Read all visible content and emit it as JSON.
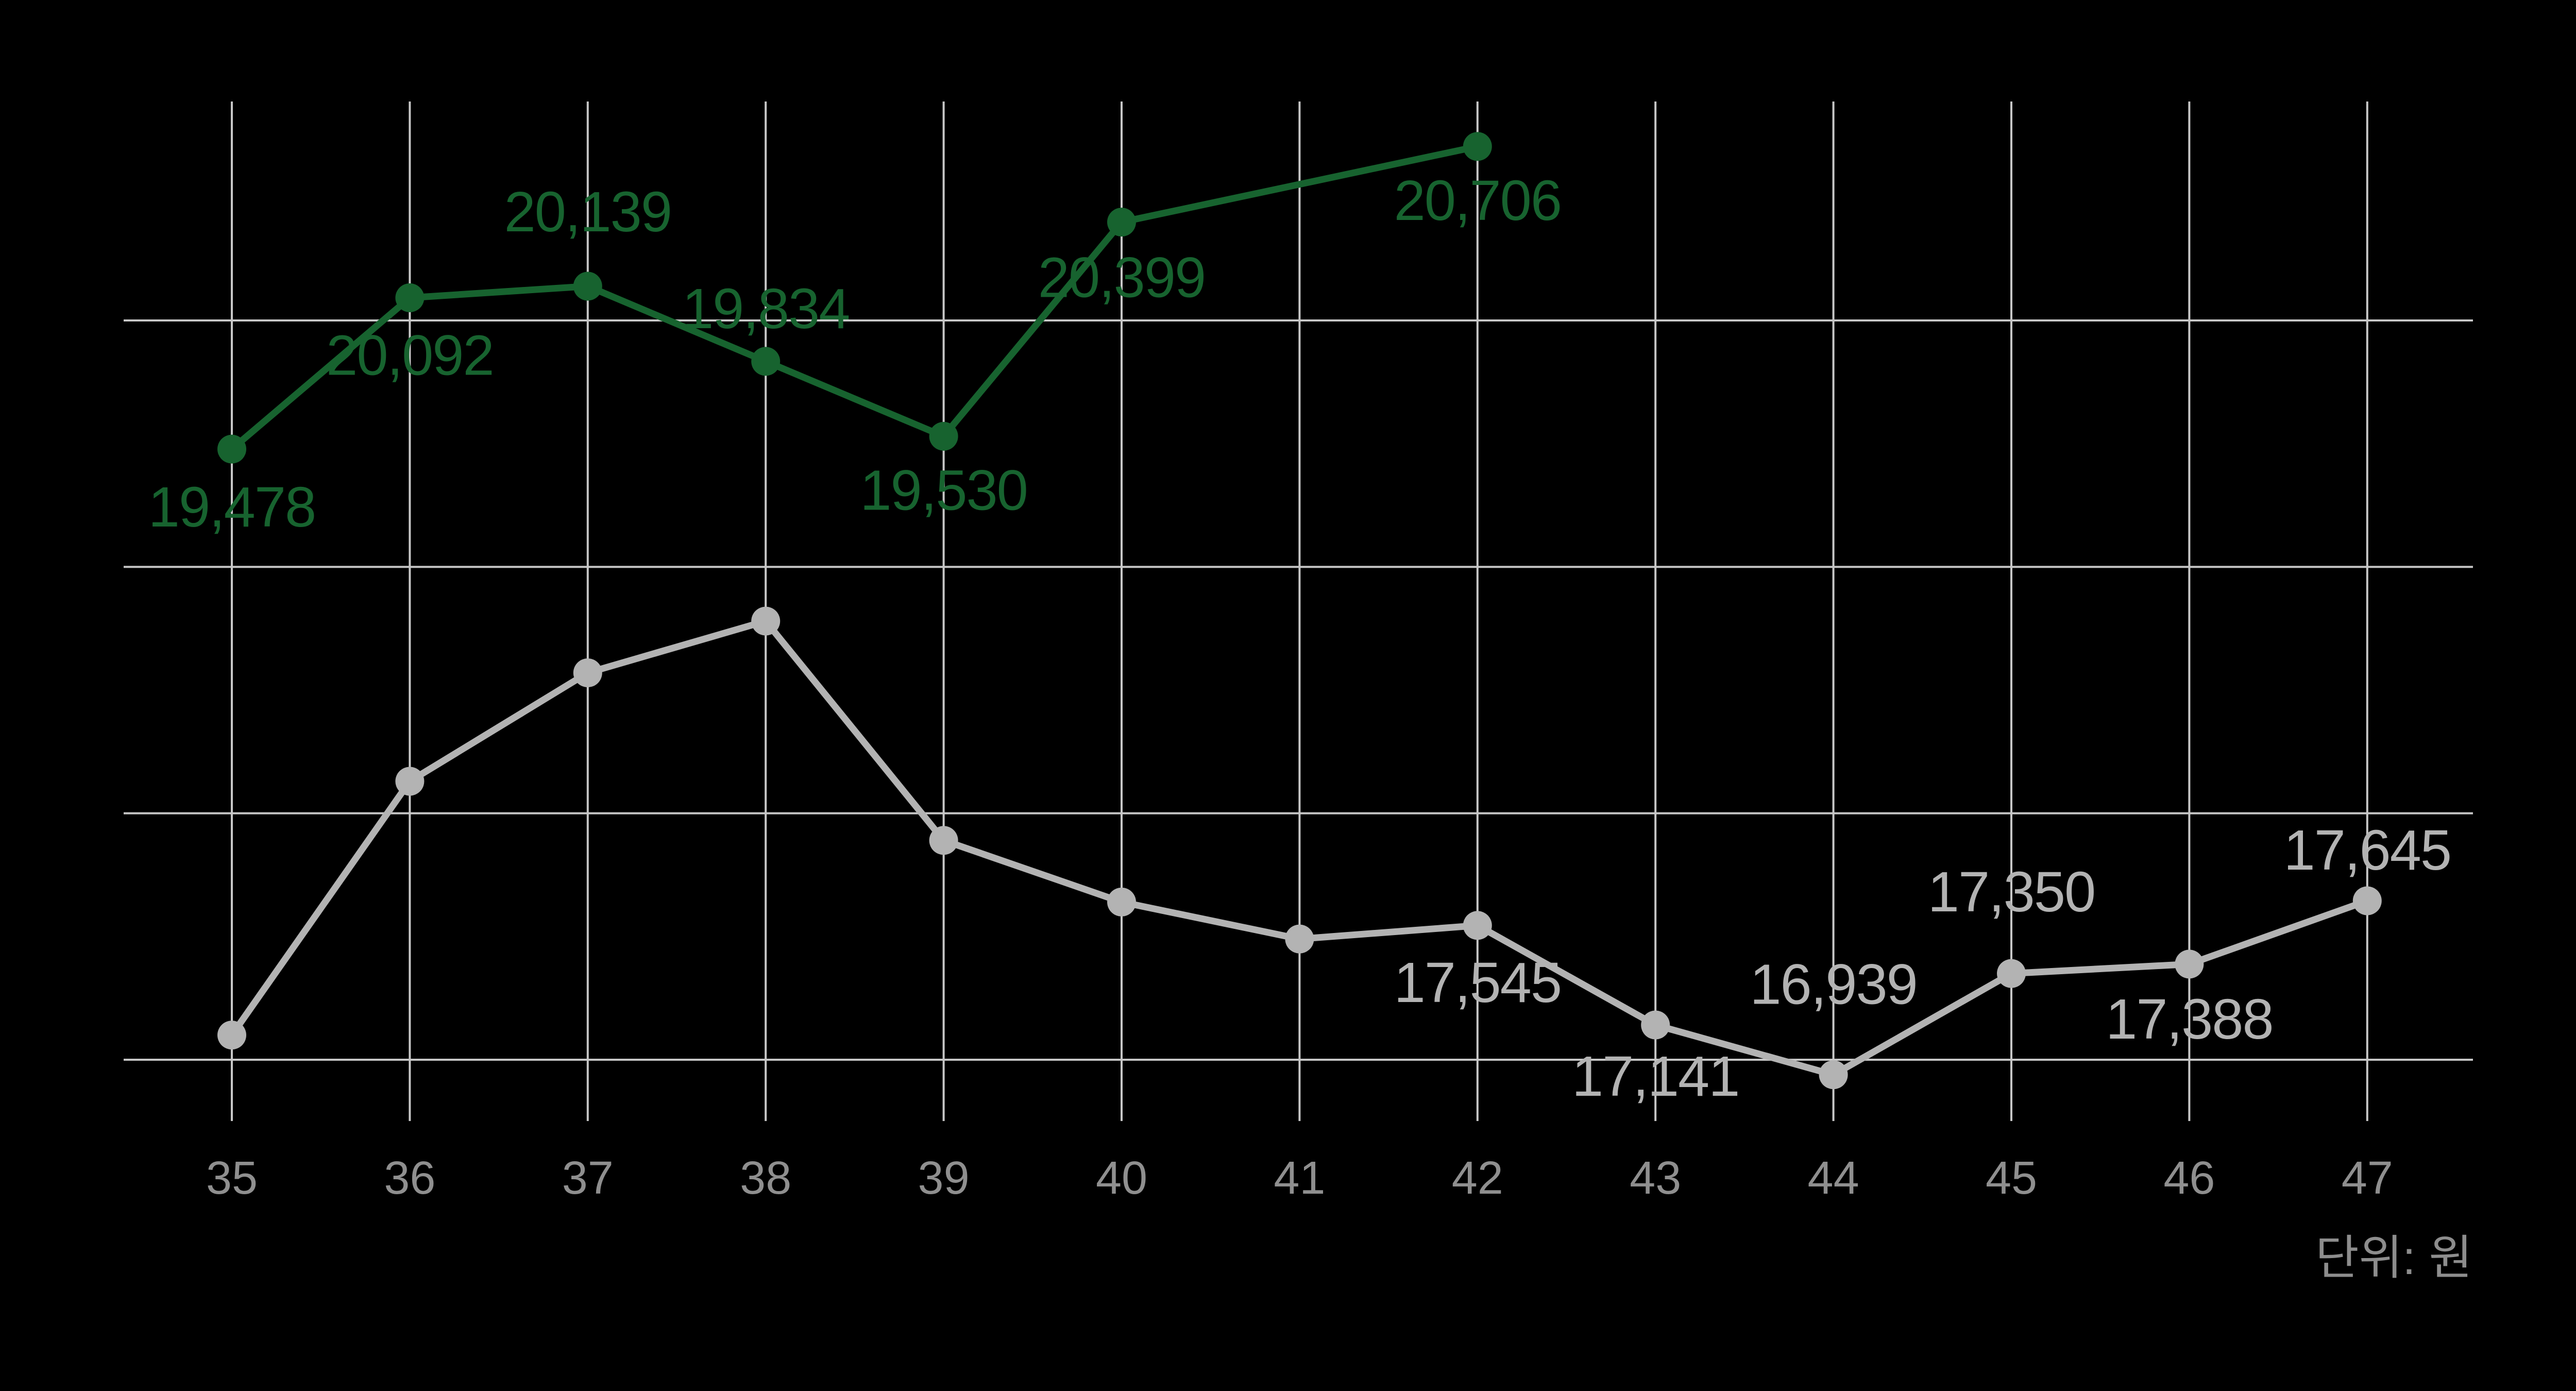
{
  "chart_data": {
    "type": "line",
    "title": "",
    "xlabel": "",
    "ylabel": "",
    "unit_note": "단위: 원",
    "x": [
      35,
      36,
      37,
      38,
      39,
      40,
      41,
      42,
      43,
      44,
      45,
      46,
      47
    ],
    "x_tick_labels": [
      "35",
      "36",
      "37",
      "38",
      "39",
      "40",
      "41",
      "42",
      "43",
      "44",
      "45",
      "46",
      "47"
    ],
    "ylim": [
      16750,
      20890
    ],
    "grid": {
      "show": true,
      "horizontal_values": [
        17000,
        18000,
        19000,
        20000
      ],
      "color": "#c7c7c7"
    },
    "colors": {
      "background": "#000000",
      "axis_text": "#8f8f8f",
      "unit_text": "#8d8d8d"
    },
    "legend": {
      "show": false
    },
    "series": [
      {
        "name": "upper-green",
        "color": "#17632f",
        "points": [
          {
            "x": 35,
            "value": 19478,
            "label": "19,478",
            "label_pos": "below",
            "label_dy": 113
          },
          {
            "x": 36,
            "value": 20092,
            "label": "20,092",
            "label_pos": "below",
            "label_dy": 112
          },
          {
            "x": 37,
            "value": 20139,
            "label": "20,139",
            "label_pos": "above",
            "label_dy": -144
          },
          {
            "x": 38,
            "value": 19834,
            "label": "19,834",
            "label_pos": "above",
            "label_dy": -102
          },
          {
            "x": 39,
            "value": 19530,
            "label": "19,530",
            "label_pos": "below",
            "label_dy": 105
          },
          {
            "x": 40,
            "value": 20399,
            "label": "20,399",
            "label_pos": "below",
            "label_dy": 108
          },
          {
            "x": 42,
            "value": 20706,
            "label": "20,706",
            "label_pos": "below",
            "label_dy": 105
          }
        ]
      },
      {
        "name": "lower-gray",
        "color": "#b3b3b3",
        "points": [
          {
            "x": 35,
            "value": 17100,
            "estimated": true
          },
          {
            "x": 36,
            "value": 18130,
            "estimated": true
          },
          {
            "x": 37,
            "value": 18570,
            "estimated": true
          },
          {
            "x": 38,
            "value": 18780,
            "estimated": true
          },
          {
            "x": 39,
            "value": 17890,
            "estimated": true
          },
          {
            "x": 40,
            "value": 17640,
            "estimated": true
          },
          {
            "x": 41,
            "value": 17490,
            "estimated": true
          },
          {
            "x": 42,
            "value": 17545,
            "label": "17,545",
            "label_pos": "below",
            "label_dy": 111
          },
          {
            "x": 43,
            "value": 17141,
            "label": "17,141",
            "label_pos": "below",
            "label_dy": 100
          },
          {
            "x": 44,
            "value": 16939,
            "label": "16,939",
            "label_pos": "above",
            "label_dy": -175
          },
          {
            "x": 45,
            "value": 17350,
            "label": "17,350",
            "label_pos": "above",
            "label_dy": -158
          },
          {
            "x": 46,
            "value": 17388,
            "label": "17,388",
            "label_pos": "below",
            "label_dy": 107
          },
          {
            "x": 47,
            "value": 17645,
            "label": "17,645",
            "label_pos": "above",
            "label_dy": -98
          }
        ]
      }
    ]
  }
}
